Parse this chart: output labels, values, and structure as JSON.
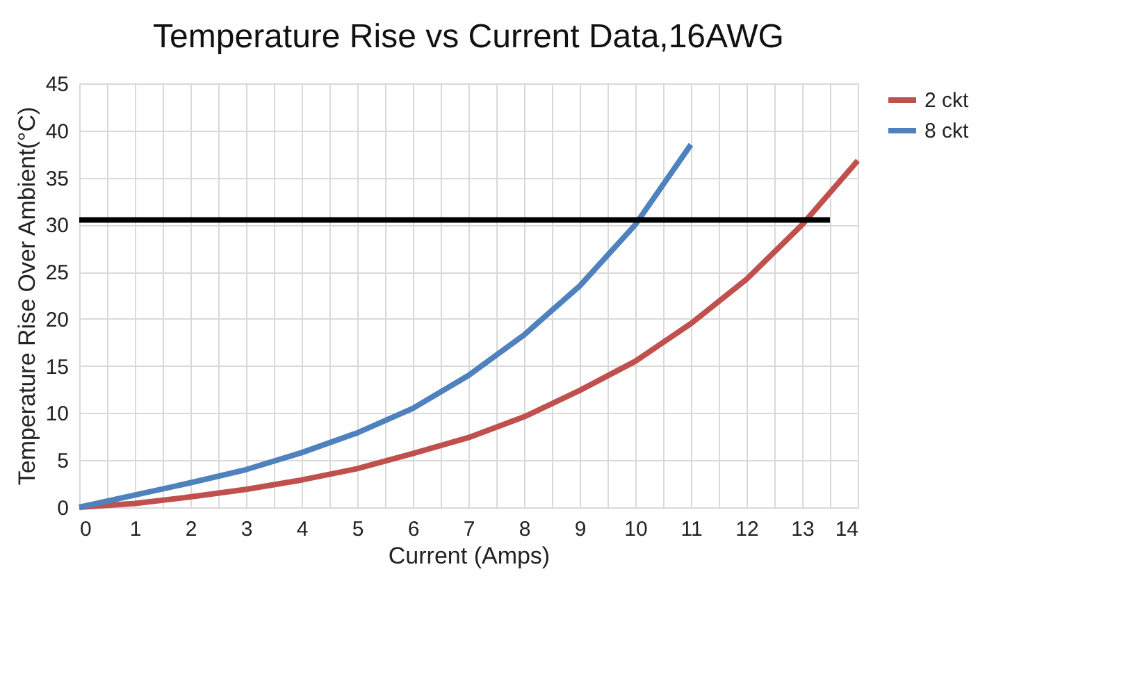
{
  "chart_data": {
    "type": "line",
    "title": "Temperature Rise vs Current Data,16AWG",
    "xlabel": "Current (Amps)",
    "ylabel": "Temperature Rise Over Ambient(°C)",
    "series": [
      {
        "name": "2 ckt",
        "color": "#c0504d",
        "x": [
          0,
          1,
          2,
          3,
          4,
          5,
          6,
          7,
          8,
          9,
          10,
          11,
          12,
          13,
          14
        ],
        "values": [
          0,
          0.4,
          1.1,
          1.9,
          2.9,
          4.1,
          5.7,
          7.4,
          9.6,
          12.4,
          15.5,
          19.5,
          24.2,
          30,
          36.8
        ]
      },
      {
        "name": "8 ckt",
        "color": "#4f81bd",
        "x": [
          0,
          1,
          2,
          3,
          4,
          5,
          6,
          7,
          8,
          9,
          10,
          11
        ],
        "values": [
          0,
          1.3,
          2.6,
          4.0,
          5.8,
          7.9,
          10.5,
          14.0,
          18.3,
          23.5,
          30,
          38.5
        ]
      },
      {
        "color": "#000000",
        "x": [
          0,
          13.5
        ],
        "values": [
          30.5,
          30.5
        ]
      }
    ],
    "xlim": [
      0,
      14
    ],
    "ylim": [
      0,
      45
    ],
    "xticks": [
      0,
      {
        "value": 0.5,
        "label": null
      },
      1,
      {
        "value": 1.5,
        "label": null
      },
      2,
      {
        "value": 2.5,
        "label": null
      },
      3,
      {
        "value": 3.5,
        "label": null
      },
      4,
      {
        "value": 4.5,
        "label": null
      },
      5,
      {
        "value": 5.5,
        "label": null
      },
      6,
      {
        "value": 6.5,
        "label": null
      },
      7,
      {
        "value": 7.5,
        "label": null
      },
      8,
      {
        "value": 8.5,
        "label": null
      },
      9,
      {
        "value": 9.5,
        "label": null
      },
      10,
      {
        "value": 10.5,
        "label": null
      },
      11,
      {
        "value": 11.5,
        "label": null
      },
      12,
      {
        "value": 12.5,
        "label": null
      },
      13,
      {
        "value": 13.5,
        "label": null
      },
      14
    ],
    "yticks": [
      0,
      5,
      10,
      15,
      20,
      25,
      30,
      35,
      40,
      45
    ],
    "grid": true,
    "legend": "right",
    "marker": "none",
    "line_style": "solid"
  }
}
